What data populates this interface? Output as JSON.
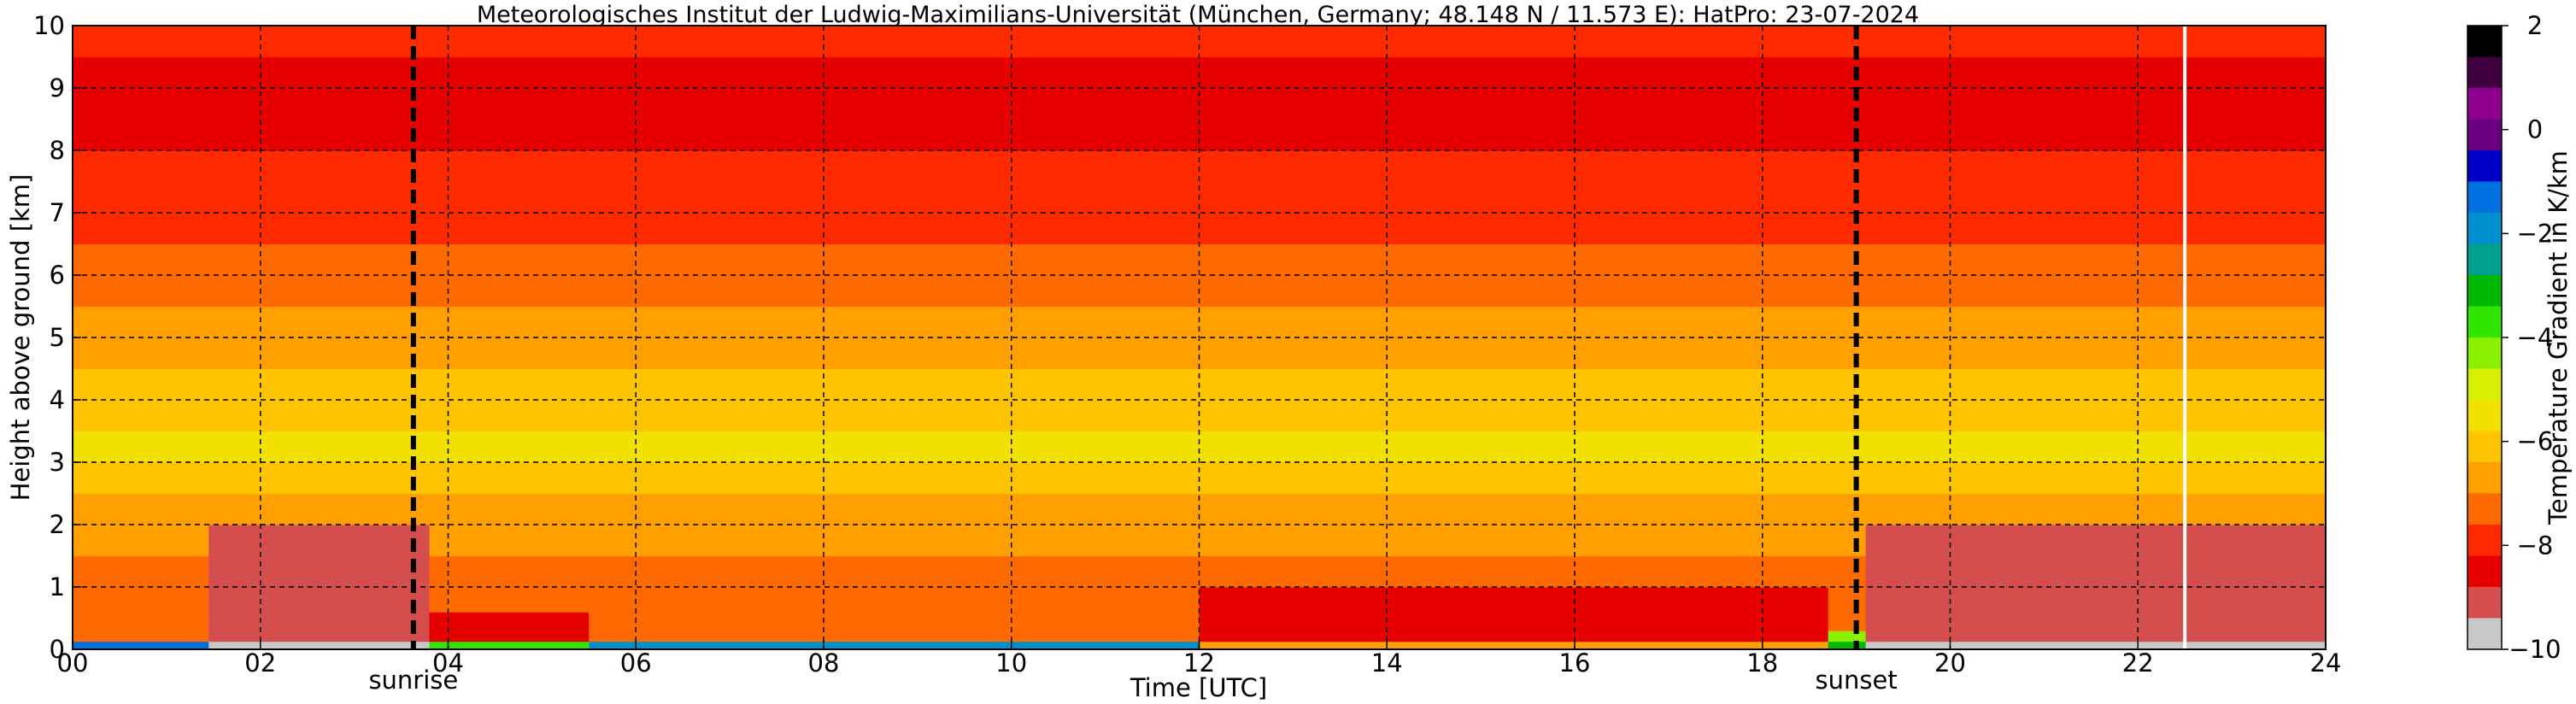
{
  "chart_data": {
    "type": "heatmap",
    "title": "Meteorologisches Institut der Ludwig-Maximilians-Universität (München, Germany; 48.148 N / 11.573 E):    HatPro: 23-07-2024",
    "xlabel": "Time [UTC]",
    "ylabel": "Height above ground [km]",
    "xlim": [
      0,
      24
    ],
    "ylim": [
      0,
      10
    ],
    "x_ticks": [
      "00",
      "02",
      "04",
      "06",
      "08",
      "10",
      "12",
      "14",
      "16",
      "18",
      "20",
      "22",
      "24"
    ],
    "y_ticks": [
      "0",
      "1",
      "2",
      "3",
      "4",
      "5",
      "6",
      "7",
      "8",
      "9",
      "10"
    ],
    "grid": true,
    "colorbar": {
      "label": "Temperature Gradient in K/km",
      "range": [
        -10,
        2
      ],
      "ticks": [
        "2",
        "0",
        "−2",
        "−4",
        "−6",
        "−8",
        "−10"
      ],
      "colors": [
        "#c8c8c8",
        "#d44e4e",
        "#e60000",
        "#ff2a00",
        "#ff6a00",
        "#ff9f00",
        "#ffc400",
        "#f2e000",
        "#d8f000",
        "#8af000",
        "#2ee600",
        "#00b800",
        "#00a090",
        "#0090d0",
        "#0070e0",
        "#0000c8",
        "#6a0080",
        "#900090",
        "#400040",
        "#000000"
      ]
    },
    "annotations": [
      {
        "text": "sunrise",
        "x": 3.63
      },
      {
        "text": "sunset",
        "x": 19.0
      }
    ],
    "highlight_line_x": 22.5,
    "height_profile_km": [
      0.1,
      0.3,
      0.6,
      1.0,
      1.5,
      2.0,
      2.5,
      3.0,
      3.5,
      4.0,
      4.5,
      5.0,
      5.5,
      6.0,
      6.5,
      7.0,
      7.5,
      8.0,
      8.5,
      9.0,
      9.5,
      10.0
    ],
    "upper_profile_gradient": [
      -7.4,
      -7.4,
      -7.4,
      -7.4,
      -7.4,
      -7.0,
      -6.6,
      -6.0,
      -5.5,
      -6.0,
      -6.3,
      -6.6,
      -6.9,
      -7.2,
      -7.4,
      -7.7,
      -8.0,
      -8.2,
      -8.6,
      -8.7,
      -8.4,
      -7.8
    ],
    "boundary_layer_segments": [
      {
        "x_start": 0.0,
        "x_end": 1.45,
        "layer_top_km": 0.25,
        "layer_gradient": -8.0,
        "surface_gradient": -1.5
      },
      {
        "x_start": 1.45,
        "x_end": 3.8,
        "layer_top_km": 2.0,
        "layer_gradient": -8.8,
        "surface_gradient": -9.8
      },
      {
        "x_start": 3.8,
        "x_end": 5.5,
        "layer_top_km": 0.6,
        "layer_gradient": -8.4,
        "surface_gradient": -3.5
      },
      {
        "x_start": 5.5,
        "x_end": 12.0,
        "layer_top_km": 0.25,
        "layer_gradient": -7.0,
        "surface_gradient": -2.0
      },
      {
        "x_start": 12.0,
        "x_end": 18.7,
        "layer_top_km": 1.3,
        "layer_gradient": -8.6,
        "surface_gradient": -7.0
      },
      {
        "x_start": 18.7,
        "x_end": 19.1,
        "layer_top_km": 0.3,
        "layer_gradient": -4.5,
        "surface_gradient": -3.0
      },
      {
        "x_start": 19.1,
        "x_end": 24.0,
        "layer_top_km": 2.0,
        "layer_gradient": -8.8,
        "surface_gradient": -9.8
      }
    ]
  }
}
